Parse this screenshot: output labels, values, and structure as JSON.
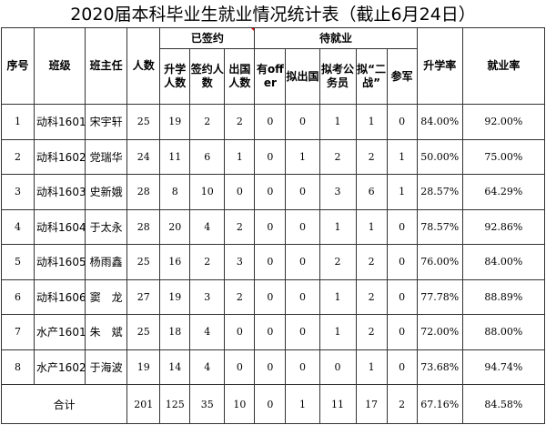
{
  "title": "2020届本科毕业生就业情况统计表（截止6月24日）",
  "headers": {
    "index": "序号",
    "class": "班级",
    "teacher": "班主任",
    "count": "人数",
    "signed_group": "已签约",
    "signed": [
      "升学人数",
      "签约人数",
      "出国人数"
    ],
    "pending_group": "待就业",
    "pending": [
      "有offer",
      "拟出国",
      "拟考公务员",
      "拟“二战”",
      "参军"
    ],
    "further_rate": "升学率",
    "employment_rate": "就业率"
  },
  "rows": [
    [
      "1",
      "动科1601",
      "宋宇轩",
      "25",
      "19",
      "2",
      "2",
      "0",
      "0",
      "1",
      "1",
      "0",
      "84.00%",
      "92.00%"
    ],
    [
      "2",
      "动科1602",
      "党瑞华",
      "24",
      "11",
      "6",
      "1",
      "0",
      "1",
      "2",
      "2",
      "1",
      "50.00%",
      "75.00%"
    ],
    [
      "3",
      "动科1603",
      "史新娥",
      "28",
      "8",
      "10",
      "0",
      "0",
      "0",
      "3",
      "6",
      "1",
      "28.57%",
      "64.29%"
    ],
    [
      "4",
      "动科1604",
      "于太永",
      "28",
      "20",
      "4",
      "2",
      "0",
      "0",
      "1",
      "1",
      "0",
      "78.57%",
      "92.86%"
    ],
    [
      "5",
      "动科1605",
      "杨雨鑫",
      "25",
      "16",
      "2",
      "3",
      "0",
      "0",
      "2",
      "2",
      "0",
      "76.00%",
      "84.00%"
    ],
    [
      "6",
      "动科1606",
      "窦　龙",
      "27",
      "19",
      "3",
      "2",
      "0",
      "0",
      "1",
      "2",
      "0",
      "77.78%",
      "88.89%"
    ],
    [
      "7",
      "水产1601",
      "朱　斌",
      "25",
      "18",
      "4",
      "0",
      "0",
      "0",
      "1",
      "2",
      "0",
      "72.00%",
      "88.00%"
    ],
    [
      "8",
      "水产1602",
      "于海波",
      "19",
      "14",
      "4",
      "0",
      "0",
      "0",
      "0",
      "1",
      "0",
      "73.68%",
      "94.74%"
    ]
  ],
  "total": {
    "label": "合计",
    "values": [
      "201",
      "125",
      "35",
      "10",
      "0",
      "1",
      "11",
      "17",
      "2",
      "67.16%",
      "84.58%"
    ]
  },
  "colors": {
    "comment_marker": "#e00000",
    "border": "#333333"
  }
}
